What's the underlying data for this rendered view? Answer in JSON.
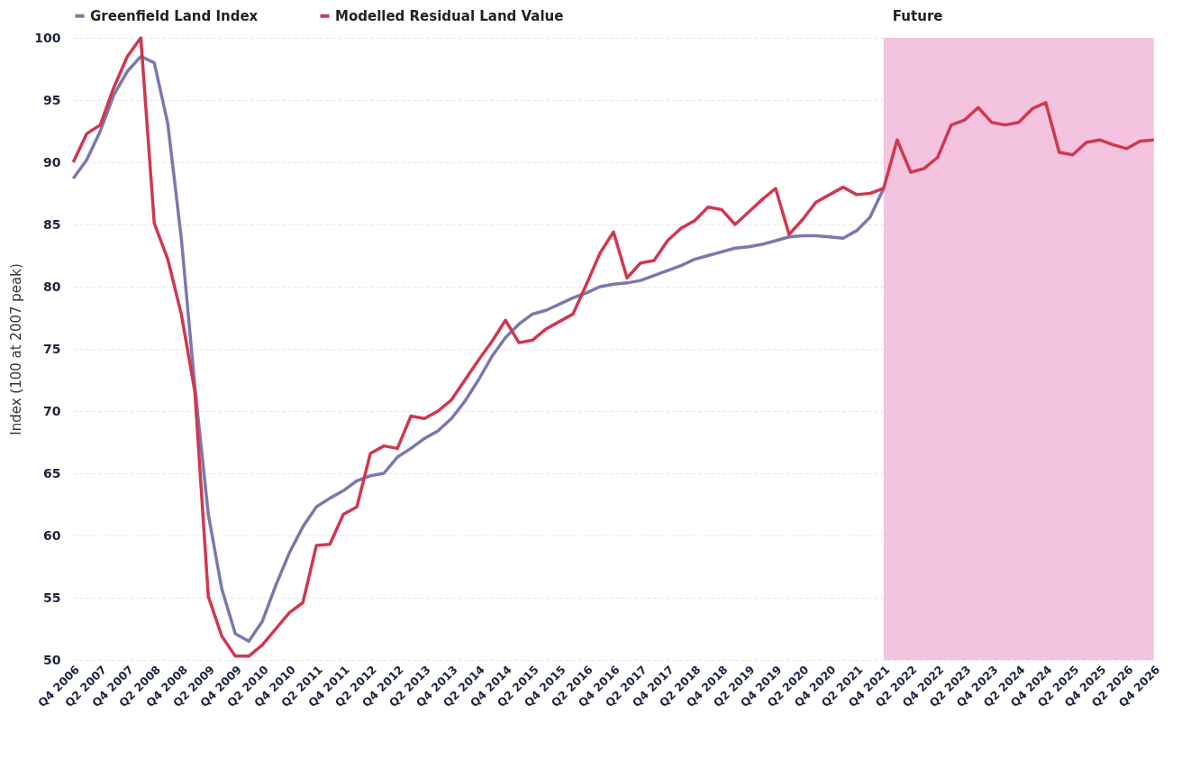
{
  "chart_data": {
    "type": "line",
    "ylabel": "Index (100 at 2007 peak)",
    "categories": [
      "Q4 2006",
      null,
      "Q2 2007",
      null,
      "Q4 2007",
      null,
      "Q2 2008",
      null,
      "Q4 2008",
      null,
      "Q2 2009",
      null,
      "Q4 2009",
      null,
      "Q2 2010",
      null,
      "Q4 2010",
      null,
      "Q2 2011",
      null,
      "Q4 2011",
      null,
      "Q2 2012",
      null,
      "Q4 2012",
      null,
      "Q2 2013",
      null,
      "Q4 2013",
      null,
      "Q2 2014",
      null,
      "Q4 2014",
      null,
      "Q2 2015",
      null,
      "Q4 2015",
      null,
      "Q2 2016",
      null,
      "Q4 2016",
      null,
      "Q2 2017",
      null,
      "Q4 2017",
      null,
      "Q2 2018",
      null,
      "Q4 2018",
      null,
      "Q2 2019",
      null,
      "Q4 2019",
      null,
      "Q2 2020",
      null,
      "Q4 2020",
      null,
      "Q2 2021",
      null,
      "Q4 2021",
      null,
      "Q2 2022",
      null,
      "Q4 2022",
      null,
      "Q2 2023",
      null,
      "Q4 2023",
      null,
      "Q2 2024",
      null,
      "Q4 2024",
      null,
      "Q2 2025",
      null,
      "Q4 2025",
      null,
      "Q2 2026",
      null,
      "Q4 2026"
    ],
    "series": [
      {
        "name": "Greenfield Land Index",
        "color": "#7b78b0",
        "values": [
          88.7,
          90.2,
          92.5,
          95.4,
          97.3,
          98.5,
          98.0,
          93.1,
          83.9,
          72.0,
          61.7,
          55.7,
          52.1,
          51.5,
          53.1,
          56.0,
          58.6,
          60.7,
          62.3,
          63.0,
          63.6,
          64.4,
          64.8,
          65.0,
          66.3,
          67.0,
          67.8,
          68.4,
          69.4,
          70.8,
          72.5,
          74.4,
          75.9,
          77.0,
          77.8,
          78.1,
          78.6,
          79.1,
          79.5,
          80.0,
          80.2,
          80.3,
          80.5,
          80.9,
          81.3,
          81.7,
          82.2,
          82.5,
          82.8,
          83.1,
          83.2,
          83.4,
          83.7,
          84.0,
          84.1,
          84.1,
          84.0,
          83.9,
          84.5,
          85.6,
          87.9,
          null,
          null,
          null,
          null,
          null,
          null,
          null,
          null,
          null,
          null,
          null,
          null,
          null,
          null,
          null,
          null,
          null,
          null,
          null,
          null
        ]
      },
      {
        "name": "Modelled Residual Land Value",
        "color": "#d0384f",
        "values": [
          90.0,
          92.3,
          93.0,
          96.0,
          98.5,
          100,
          85.1,
          82.2,
          77.8,
          71.6,
          55.1,
          51.9,
          50.3,
          50.3,
          51.2,
          52.5,
          53.8,
          54.6,
          59.2,
          59.3,
          61.7,
          62.3,
          66.6,
          67.2,
          67.0,
          69.6,
          69.4,
          70.0,
          70.9,
          72.5,
          74.1,
          75.6,
          77.3,
          75.5,
          75.7,
          76.6,
          77.2,
          77.8,
          80.2,
          82.7,
          84.4,
          80.7,
          81.9,
          82.1,
          83.7,
          84.7,
          85.3,
          86.4,
          86.2,
          85.0,
          86.0,
          87.0,
          87.9,
          84.2,
          85.4,
          86.8,
          87.4,
          88.0,
          87.4,
          87.5,
          87.9,
          91.8,
          89.2,
          89.5,
          90.4,
          93.0,
          93.4,
          94.4,
          93.2,
          93.0,
          93.2,
          94.3,
          94.8,
          90.8,
          90.6,
          91.6,
          91.8,
          91.4,
          91.1,
          91.7,
          91.8
        ]
      }
    ],
    "ylim": [
      50,
      100
    ],
    "yticks": [
      50,
      55,
      60,
      65,
      70,
      75,
      80,
      85,
      90,
      95,
      100
    ],
    "grid": "y",
    "legend": "top",
    "bands": [
      {
        "axis": "x",
        "from": "Q4 2021",
        "to": "Q4 2026",
        "label": "Future",
        "color": "#f2b8d9"
      }
    ]
  }
}
